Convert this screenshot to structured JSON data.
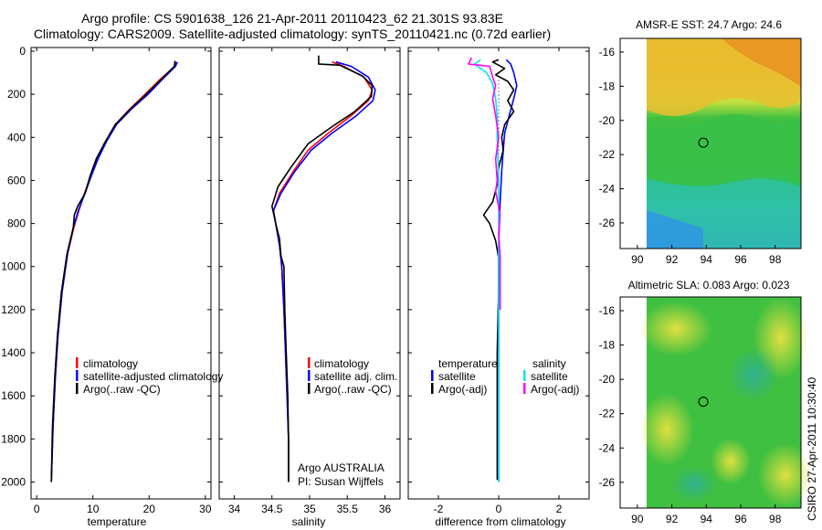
{
  "title_line1": "Argo profile: CS 5901638_126 21-Apr-2011 20110423_62 21.301S 93.83E",
  "title_line2": "Climatology: CARS2009. Satellite-adjusted climatology: synTS_20110421.nc (0.72d earlier)",
  "side_label": "CSIRO 27-Apr-2011 10:30:40",
  "colors": {
    "red": "#ff0000",
    "blue": "#0000ff",
    "black": "#000000",
    "cyan": "#00e5ee",
    "magenta": "#ff00ff"
  },
  "chart_data": [
    {
      "type": "line",
      "xlabel": "temperature",
      "ylabel": "",
      "xlim": [
        -1,
        31
      ],
      "ylim": [
        2070,
        0
      ],
      "xticks": [
        0,
        10,
        20,
        30
      ],
      "yticks": [
        0,
        200,
        400,
        600,
        800,
        1000,
        1200,
        1400,
        1600,
        1800,
        2000
      ],
      "legend": [
        "climatology",
        "satellite-adjusted climatology",
        "Argo(..raw -QC)"
      ],
      "series": [
        {
          "name": "climatology",
          "color": "red",
          "points": [
            [
              24.8,
              50
            ],
            [
              24.6,
              70
            ],
            [
              22,
              130
            ],
            [
              19.3,
              200
            ],
            [
              16.5,
              270
            ],
            [
              14,
              340
            ],
            [
              12.3,
              420
            ],
            [
              10.8,
              500
            ],
            [
              9.6,
              580
            ],
            [
              8.5,
              660
            ],
            [
              7.5,
              740
            ],
            [
              6.6,
              820
            ],
            [
              5.5,
              940
            ],
            [
              4.5,
              1120
            ],
            [
              3.8,
              1320
            ],
            [
              3.3,
              1520
            ],
            [
              2.9,
              1750
            ],
            [
              2.6,
              2000
            ]
          ]
        },
        {
          "name": "satellite-adjusted climatology",
          "color": "blue",
          "points": [
            [
              25,
              50
            ],
            [
              24.7,
              70
            ],
            [
              22.4,
              130
            ],
            [
              19.8,
              200
            ],
            [
              16.8,
              270
            ],
            [
              14.2,
              340
            ],
            [
              12.4,
              420
            ],
            [
              10.9,
              500
            ],
            [
              9.7,
              580
            ],
            [
              8.6,
              660
            ],
            [
              7.4,
              740
            ],
            [
              6.5,
              820
            ],
            [
              5.5,
              940
            ],
            [
              4.5,
              1120
            ],
            [
              3.8,
              1320
            ],
            [
              3.3,
              1520
            ],
            [
              2.9,
              1750
            ],
            [
              2.6,
              2000
            ]
          ]
        },
        {
          "name": "Argo(..raw -QC)",
          "color": "black",
          "points": [
            [
              24.6,
              45
            ],
            [
              24.5,
              70
            ],
            [
              22.2,
              130
            ],
            [
              19.5,
              200
            ],
            [
              16.6,
              270
            ],
            [
              14.0,
              340
            ],
            [
              12.2,
              420
            ],
            [
              10.6,
              500
            ],
            [
              9.5,
              580
            ],
            [
              8.6,
              660
            ],
            [
              7.3,
              720
            ],
            [
              6.7,
              760
            ],
            [
              6.5,
              820
            ],
            [
              5.4,
              940
            ],
            [
              4.4,
              1120
            ],
            [
              3.7,
              1320
            ],
            [
              3.2,
              1520
            ],
            [
              2.8,
              1750
            ],
            [
              2.6,
              2000
            ]
          ]
        }
      ]
    },
    {
      "type": "line",
      "xlabel": "salinity",
      "ylabel": "",
      "xlim": [
        33.8,
        36.2
      ],
      "ylim": [
        2070,
        0
      ],
      "xticks": [
        34,
        34.5,
        35,
        35.5,
        36
      ],
      "xtick_labels": [
        "34",
        "34.5",
        "35",
        "35.5",
        "36"
      ],
      "yticks": [
        0,
        200,
        400,
        600,
        800,
        1000,
        1200,
        1400,
        1600,
        1800,
        2000
      ],
      "legend": [
        "climatology",
        "satellite adj. clim.",
        "Argo(..raw -QC)"
      ],
      "annotations": [
        "Argo AUSTRALIA",
        "PI: Susan Wijffels"
      ],
      "series": [
        {
          "name": "climatology",
          "color": "red",
          "points": [
            [
              35.3,
              50
            ],
            [
              35.45,
              70
            ],
            [
              35.72,
              120
            ],
            [
              35.83,
              180
            ],
            [
              35.78,
              230
            ],
            [
              35.55,
              300
            ],
            [
              35.25,
              380
            ],
            [
              34.98,
              460
            ],
            [
              34.78,
              560
            ],
            [
              34.6,
              660
            ],
            [
              34.52,
              740
            ],
            [
              34.56,
              820
            ],
            [
              34.6,
              900
            ],
            [
              34.63,
              1000
            ],
            [
              34.66,
              1200
            ],
            [
              34.68,
              1400
            ],
            [
              34.7,
              1600
            ],
            [
              34.72,
              1800
            ],
            [
              34.72,
              2000
            ]
          ]
        },
        {
          "name": "satellite adj. clim.",
          "color": "blue",
          "points": [
            [
              35.35,
              50
            ],
            [
              35.55,
              70
            ],
            [
              35.78,
              120
            ],
            [
              35.87,
              180
            ],
            [
              35.84,
              230
            ],
            [
              35.62,
              300
            ],
            [
              35.3,
              380
            ],
            [
              35.02,
              460
            ],
            [
              34.8,
              560
            ],
            [
              34.62,
              660
            ],
            [
              34.52,
              740
            ],
            [
              34.56,
              820
            ],
            [
              34.6,
              900
            ],
            [
              34.63,
              1000
            ],
            [
              34.66,
              1200
            ],
            [
              34.68,
              1400
            ],
            [
              34.7,
              1600
            ],
            [
              34.72,
              1800
            ],
            [
              34.72,
              2000
            ]
          ]
        },
        {
          "name": "Argo(..raw -QC)",
          "color": "black",
          "points": [
            [
              35.12,
              20
            ],
            [
              35.12,
              60
            ],
            [
              35.4,
              65
            ],
            [
              35.7,
              115
            ],
            [
              35.83,
              160
            ],
            [
              35.82,
              210
            ],
            [
              35.6,
              280
            ],
            [
              35.3,
              350
            ],
            [
              34.98,
              430
            ],
            [
              34.75,
              540
            ],
            [
              34.58,
              630
            ],
            [
              34.5,
              720
            ],
            [
              34.55,
              800
            ],
            [
              34.6,
              870
            ],
            [
              34.62,
              950
            ],
            [
              34.66,
              1000
            ],
            [
              34.67,
              1200
            ],
            [
              34.69,
              1400
            ],
            [
              34.71,
              1600
            ],
            [
              34.72,
              1800
            ],
            [
              34.72,
              2000
            ]
          ]
        }
      ]
    },
    {
      "type": "line",
      "xlabel": "difference from climatology",
      "ylabel": "",
      "xlim": [
        -3,
        3
      ],
      "ylim": [
        2070,
        0
      ],
      "xticks": [
        -2,
        0,
        2
      ],
      "yticks": [
        0,
        200,
        400,
        600,
        800,
        1000,
        1200,
        1400,
        1600,
        1800,
        2000
      ],
      "legend_headers": [
        "temperature",
        "salinity"
      ],
      "legend": [
        "satellite",
        "Argo(-adj)",
        "satellite",
        "Argo(-adj)"
      ],
      "series": [
        {
          "name": "temperature satellite",
          "color": "blue",
          "points": [
            [
              0.25,
              40
            ],
            [
              0.4,
              60
            ],
            [
              0.5,
              100
            ],
            [
              0.6,
              160
            ],
            [
              0.5,
              220
            ],
            [
              0.35,
              300
            ],
            [
              0.2,
              380
            ],
            [
              0.15,
              460
            ],
            [
              0.1,
              560
            ],
            [
              0.05,
              700
            ],
            [
              0.0,
              900
            ],
            [
              0.0,
              1200
            ],
            [
              0.0,
              1600
            ],
            [
              0.0,
              2000
            ]
          ]
        },
        {
          "name": "temperature Argo(-adj)",
          "color": "black",
          "points": [
            [
              0.0,
              40
            ],
            [
              -0.2,
              50
            ],
            [
              0.2,
              80
            ],
            [
              -0.1,
              110
            ],
            [
              0.3,
              140
            ],
            [
              0.5,
              180
            ],
            [
              0.3,
              230
            ],
            [
              0.5,
              280
            ],
            [
              0.2,
              340
            ],
            [
              0.1,
              400
            ],
            [
              0.15,
              460
            ],
            [
              0.0,
              540
            ],
            [
              -0.05,
              620
            ],
            [
              -0.2,
              700
            ],
            [
              -0.5,
              760
            ],
            [
              -0.3,
              800
            ],
            [
              -0.1,
              880
            ],
            [
              0.0,
              960
            ],
            [
              0.0,
              1100
            ],
            [
              -0.05,
              1400
            ],
            [
              -0.05,
              1800
            ],
            [
              -0.05,
              1990
            ]
          ]
        },
        {
          "name": "salinity satellite",
          "color": "cyan",
          "points": [
            [
              -0.6,
              40
            ],
            [
              -0.8,
              60
            ],
            [
              -0.4,
              100
            ],
            [
              -0.2,
              150
            ],
            [
              -0.1,
              220
            ],
            [
              -0.05,
              300
            ],
            [
              -0.05,
              400
            ],
            [
              0.0,
              600
            ],
            [
              0.0,
              800
            ],
            [
              0.0,
              1200
            ],
            [
              0.0,
              1600
            ],
            [
              0.0,
              2000
            ]
          ]
        },
        {
          "name": "salinity Argo(-adj)",
          "color": "magenta",
          "points": [
            [
              -0.9,
              30
            ],
            [
              -1.0,
              60
            ],
            [
              -0.3,
              70
            ],
            [
              -0.2,
              120
            ],
            [
              -0.1,
              160
            ],
            [
              -0.2,
              220
            ],
            [
              -0.1,
              300
            ],
            [
              0.0,
              400
            ],
            [
              -0.1,
              500
            ],
            [
              -0.05,
              600
            ],
            [
              -0.1,
              650
            ],
            [
              0.05,
              760
            ],
            [
              0.0,
              850
            ],
            [
              0.05,
              950
            ],
            [
              0.05,
              1200
            ]
          ]
        }
      ]
    },
    {
      "type": "heatmap",
      "title": "AMSR-E SST: 24.7 Argo: 24.6",
      "xlim": [
        89,
        99.5
      ],
      "ylim": [
        -27.5,
        -15.2
      ],
      "xticks": [
        90,
        92,
        94,
        96,
        98
      ],
      "yticks": [
        -16,
        -18,
        -20,
        -22,
        -24,
        -26
      ],
      "marker": {
        "lon": 93.83,
        "lat": -21.301
      }
    },
    {
      "type": "heatmap",
      "title": "Altimetric SLA: 0.083 Argo: 0.023",
      "xlim": [
        89,
        99.5
      ],
      "ylim": [
        -27.5,
        -15.2
      ],
      "xticks": [
        90,
        92,
        94,
        96,
        98
      ],
      "yticks": [
        -16,
        -18,
        -20,
        -22,
        -24,
        -26
      ],
      "marker": {
        "lon": 93.83,
        "lat": -21.301
      }
    }
  ]
}
